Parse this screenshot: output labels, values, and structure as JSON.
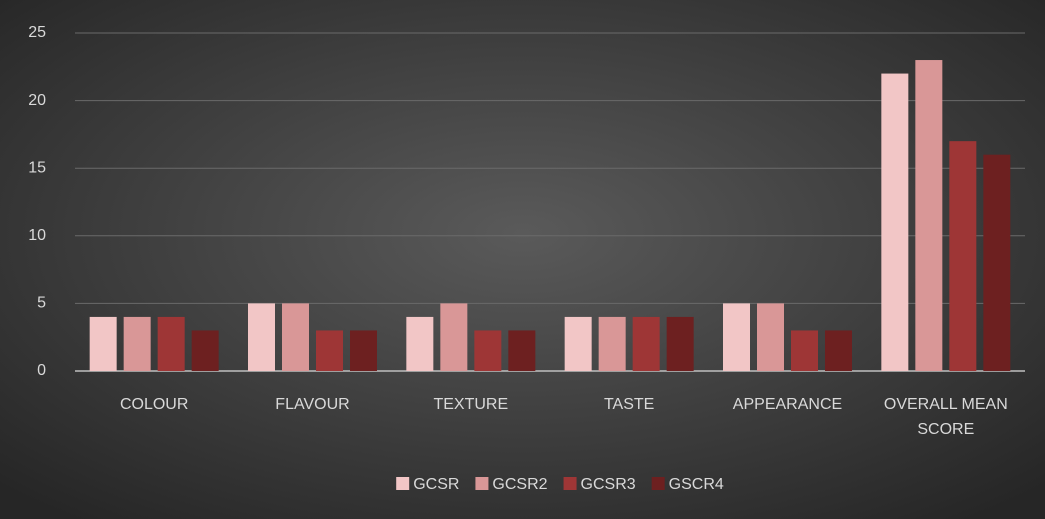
{
  "chart_data": {
    "type": "bar",
    "categories": [
      "COLOUR",
      "FLAVOUR",
      "TEXTURE",
      "TASTE",
      "APPEARANCE",
      "OVERALL MEAN SCORE"
    ],
    "series": [
      {
        "name": "GCSR",
        "color": "#f2c6c6",
        "values": [
          4,
          5,
          4,
          4,
          5,
          22
        ]
      },
      {
        "name": "GCSR2",
        "color": "#d99797",
        "values": [
          4,
          5,
          5,
          4,
          5,
          23
        ]
      },
      {
        "name": "GCSR3",
        "color": "#9e3636",
        "values": [
          4,
          3,
          3,
          4,
          3,
          17
        ]
      },
      {
        "name": "GSCR4",
        "color": "#6d2020",
        "values": [
          3,
          3,
          3,
          4,
          3,
          16
        ]
      }
    ],
    "ylim": [
      0,
      25
    ],
    "yticks": [
      0,
      5,
      10,
      15,
      20,
      25
    ],
    "grid": true,
    "legend": "bottom"
  }
}
